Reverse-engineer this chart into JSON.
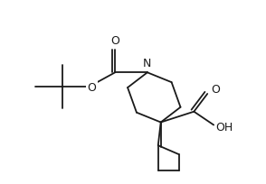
{
  "background_color": "#ffffff",
  "line_color": "#1a1a1a",
  "lw": 1.3,
  "figsize": [
    2.94,
    2.04
  ],
  "dpi": 100,
  "xlim": [
    0,
    294
  ],
  "ylim": [
    0,
    204
  ]
}
